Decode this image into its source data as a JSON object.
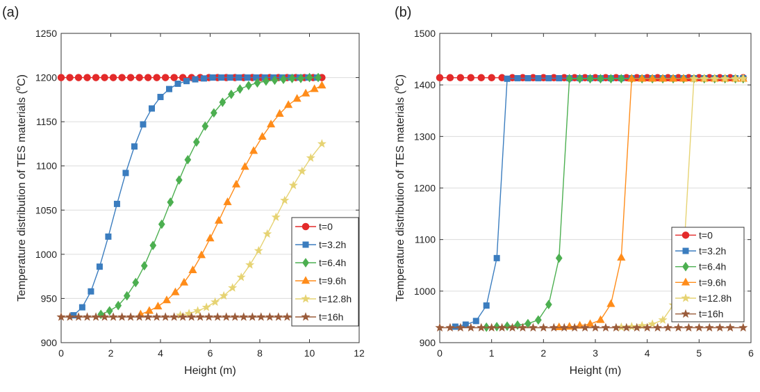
{
  "chart_data": [
    {
      "type": "line",
      "panel_label": "(a)",
      "xlabel": "Height (m)",
      "ylabel_main": "Temperature distribution of TES materials (",
      "ylabel_sup": "o",
      "ylabel_unit": "C)",
      "xlim": [
        0,
        12
      ],
      "ylim": [
        900,
        1250
      ],
      "xticks": [
        "0",
        "2",
        "4",
        "6",
        "8",
        "10",
        "12"
      ],
      "yticks": [
        "900",
        "950",
        "1000",
        "1050",
        "1100",
        "1150",
        "1200",
        "1250"
      ],
      "grid": "y-major",
      "legend_position": "lower-right",
      "series": [
        {
          "name": "t=0",
          "color": "#e32a2a",
          "marker": "circle",
          "x": [
            0,
            0.35,
            0.7,
            1.05,
            1.4,
            1.75,
            2.1,
            2.45,
            2.8,
            3.15,
            3.5,
            3.85,
            4.2,
            4.55,
            4.9,
            5.25,
            5.6,
            5.95,
            6.3,
            6.65,
            7.0,
            7.35,
            7.7,
            8.05,
            8.4,
            8.75,
            9.1,
            9.45,
            9.8,
            10.15,
            10.5
          ],
          "y": [
            1200,
            1200,
            1200,
            1200,
            1200,
            1200,
            1200,
            1200,
            1200,
            1200,
            1200,
            1200,
            1200,
            1200,
            1200,
            1200,
            1200,
            1200,
            1200,
            1200,
            1200,
            1200,
            1200,
            1200,
            1200,
            1200,
            1200,
            1200,
            1200,
            1200,
            1200
          ]
        },
        {
          "name": "t=3.2h",
          "color": "#3b7dbf",
          "marker": "square",
          "x": [
            0.5,
            0.85,
            1.2,
            1.55,
            1.9,
            2.25,
            2.6,
            2.95,
            3.3,
            3.65,
            4.0,
            4.35,
            4.7,
            5.05,
            5.4,
            5.75,
            6.1,
            6.45,
            6.8,
            7.15,
            7.5,
            7.85,
            8.2,
            8.55,
            8.9,
            9.25,
            9.6,
            9.95,
            10.3
          ],
          "y": [
            931,
            940,
            958,
            986,
            1020,
            1057,
            1092,
            1122,
            1147,
            1165,
            1178,
            1187,
            1193,
            1196,
            1198,
            1199,
            1200,
            1200,
            1200,
            1200,
            1200,
            1200,
            1200,
            1200,
            1200,
            1200,
            1200,
            1200,
            1200
          ]
        },
        {
          "name": "t=6.4h",
          "color": "#4caf50",
          "marker": "diamond",
          "x": [
            1.6,
            1.95,
            2.3,
            2.65,
            3.0,
            3.35,
            3.7,
            4.05,
            4.4,
            4.75,
            5.1,
            5.45,
            5.8,
            6.15,
            6.5,
            6.85,
            7.2,
            7.55,
            7.9,
            8.25,
            8.6,
            8.95,
            9.3,
            9.65,
            10.0,
            10.35
          ],
          "y": [
            932,
            936,
            942,
            953,
            968,
            987,
            1010,
            1034,
            1059,
            1084,
            1107,
            1127,
            1145,
            1160,
            1172,
            1181,
            1187,
            1191,
            1194,
            1196,
            1197,
            1198,
            1199,
            1199,
            1200,
            1200
          ]
        },
        {
          "name": "t=9.6h",
          "color": "#ff8c1a",
          "marker": "triangle",
          "x": [
            3.2,
            3.55,
            3.9,
            4.25,
            4.6,
            4.95,
            5.3,
            5.65,
            6.0,
            6.35,
            6.7,
            7.05,
            7.4,
            7.75,
            8.1,
            8.45,
            8.8,
            9.15,
            9.5,
            9.85,
            10.2,
            10.5
          ],
          "y": [
            932,
            936,
            941,
            948,
            957,
            968,
            982,
            999,
            1018,
            1038,
            1059,
            1079,
            1099,
            1117,
            1133,
            1147,
            1159,
            1169,
            1176,
            1182,
            1187,
            1191
          ]
        },
        {
          "name": "t=12.8h",
          "color": "#e6d373",
          "marker": "star",
          "x": [
            4.8,
            5.15,
            5.5,
            5.85,
            6.2,
            6.55,
            6.9,
            7.25,
            7.6,
            7.95,
            8.3,
            8.65,
            9.0,
            9.35,
            9.7,
            10.05,
            10.5
          ],
          "y": [
            931,
            933,
            936,
            940,
            946,
            953,
            962,
            974,
            988,
            1004,
            1023,
            1042,
            1061,
            1078,
            1094,
            1109,
            1125
          ]
        },
        {
          "name": "t=16h",
          "color": "#9a5b3a",
          "marker": "star",
          "x": [
            0,
            0.35,
            0.7,
            1.05,
            1.4,
            1.75,
            2.1,
            2.45,
            2.8,
            3.15,
            3.5,
            3.85,
            4.2,
            4.55,
            4.9,
            5.25,
            5.6,
            5.95,
            6.3,
            6.65,
            7.0,
            7.35,
            7.7,
            8.05,
            8.4,
            8.75,
            9.1,
            9.45,
            9.8,
            10.15,
            10.5
          ],
          "y": [
            929,
            929,
            929,
            929,
            929,
            929,
            929,
            929,
            929,
            929,
            929,
            929,
            929,
            929,
            929,
            929,
            929,
            929,
            929,
            929,
            929,
            929,
            929,
            929,
            929,
            929,
            929,
            929,
            929,
            929,
            929
          ]
        }
      ]
    },
    {
      "type": "line",
      "panel_label": "(b)",
      "xlabel": "Height (m)",
      "ylabel_main": "Temperature distribution of TES materials (",
      "ylabel_sup": "o",
      "ylabel_unit": "C)",
      "xlim": [
        0,
        6
      ],
      "ylim": [
        900,
        1500
      ],
      "xticks": [
        "0",
        "1",
        "2",
        "3",
        "4",
        "5",
        "6"
      ],
      "yticks": [
        "900",
        "1000",
        "1100",
        "1200",
        "1300",
        "1400",
        "1500"
      ],
      "grid": "y-major",
      "legend_position": "lower-right",
      "series": [
        {
          "name": "t=0",
          "color": "#e32a2a",
          "marker": "circle",
          "x": [
            0,
            0.2,
            0.4,
            0.6,
            0.8,
            1.0,
            1.2,
            1.4,
            1.6,
            1.8,
            2.0,
            2.2,
            2.4,
            2.6,
            2.8,
            3.0,
            3.2,
            3.4,
            3.6,
            3.8,
            4.0,
            4.2,
            4.4,
            4.6,
            4.8,
            5.0,
            5.2,
            5.4,
            5.6,
            5.85
          ],
          "y": [
            1414,
            1414,
            1414,
            1414,
            1414,
            1414,
            1414,
            1414,
            1414,
            1414,
            1414,
            1414,
            1414,
            1414,
            1414,
            1414,
            1414,
            1414,
            1414,
            1414,
            1414,
            1414,
            1414,
            1414,
            1414,
            1414,
            1414,
            1414,
            1414,
            1414
          ]
        },
        {
          "name": "t=3.2h",
          "color": "#3b7dbf",
          "marker": "square",
          "x": [
            0.3,
            0.5,
            0.7,
            0.9,
            1.1,
            1.3,
            1.5,
            1.7,
            1.9,
            2.1,
            2.3,
            2.5,
            2.7,
            2.9,
            3.1,
            3.3,
            3.5,
            3.7,
            3.9,
            4.1,
            4.3,
            4.5,
            4.7,
            4.9,
            5.1,
            5.3,
            5.5,
            5.7,
            5.85
          ],
          "y": [
            931,
            935,
            942,
            972,
            1064,
            1412,
            1413,
            1413,
            1413,
            1413,
            1413,
            1413,
            1413,
            1413,
            1413,
            1413,
            1413,
            1413,
            1413,
            1413,
            1413,
            1413,
            1413,
            1413,
            1413,
            1413,
            1413,
            1413,
            1413
          ]
        },
        {
          "name": "t=6.4h",
          "color": "#4caf50",
          "marker": "diamond",
          "x": [
            0.9,
            1.1,
            1.3,
            1.5,
            1.7,
            1.9,
            2.1,
            2.3,
            2.5,
            2.7,
            2.9,
            3.1,
            3.3,
            3.5,
            3.7,
            3.9,
            4.1,
            4.3,
            4.5,
            4.7,
            4.9,
            5.1,
            5.3,
            5.5,
            5.7,
            5.85
          ],
          "y": [
            930,
            931,
            932,
            934,
            937,
            944,
            974,
            1064,
            1412,
            1412,
            1412,
            1412,
            1412,
            1412,
            1412,
            1412,
            1412,
            1412,
            1412,
            1412,
            1412,
            1412,
            1412,
            1412,
            1412,
            1412
          ]
        },
        {
          "name": "t=9.6h",
          "color": "#ff8c1a",
          "marker": "triangle",
          "x": [
            2.3,
            2.5,
            2.7,
            2.9,
            3.1,
            3.3,
            3.5,
            3.7,
            3.9,
            4.1,
            4.3,
            4.5,
            4.7,
            4.9,
            5.1,
            5.3,
            5.5,
            5.7,
            5.85
          ],
          "y": [
            930,
            931,
            933,
            936,
            944,
            975,
            1065,
            1412,
            1412,
            1412,
            1412,
            1412,
            1412,
            1412,
            1412,
            1412,
            1412,
            1412,
            1412
          ]
        },
        {
          "name": "t=12.8h",
          "color": "#e6d373",
          "marker": "star",
          "x": [
            3.5,
            3.7,
            3.9,
            4.1,
            4.3,
            4.5,
            4.7,
            4.9,
            5.1,
            5.3,
            5.5,
            5.7,
            5.85
          ],
          "y": [
            930,
            931,
            933,
            936,
            944,
            973,
            1063,
            1412,
            1412,
            1412,
            1412,
            1412,
            1412
          ]
        },
        {
          "name": "t=16h",
          "color": "#9a5b3a",
          "marker": "star",
          "x": [
            0,
            0.2,
            0.4,
            0.6,
            0.8,
            1.0,
            1.2,
            1.4,
            1.6,
            1.8,
            2.0,
            2.2,
            2.4,
            2.6,
            2.8,
            3.0,
            3.2,
            3.4,
            3.6,
            3.8,
            4.0,
            4.2,
            4.4,
            4.6,
            4.8,
            5.0,
            5.2,
            5.4,
            5.6,
            5.85
          ],
          "y": [
            929,
            929,
            929,
            929,
            929,
            929,
            929,
            929,
            929,
            929,
            929,
            929,
            929,
            929,
            929,
            929,
            929,
            929,
            929,
            929,
            929,
            929,
            929,
            929,
            929,
            929,
            929,
            929,
            929,
            929
          ]
        }
      ]
    }
  ]
}
